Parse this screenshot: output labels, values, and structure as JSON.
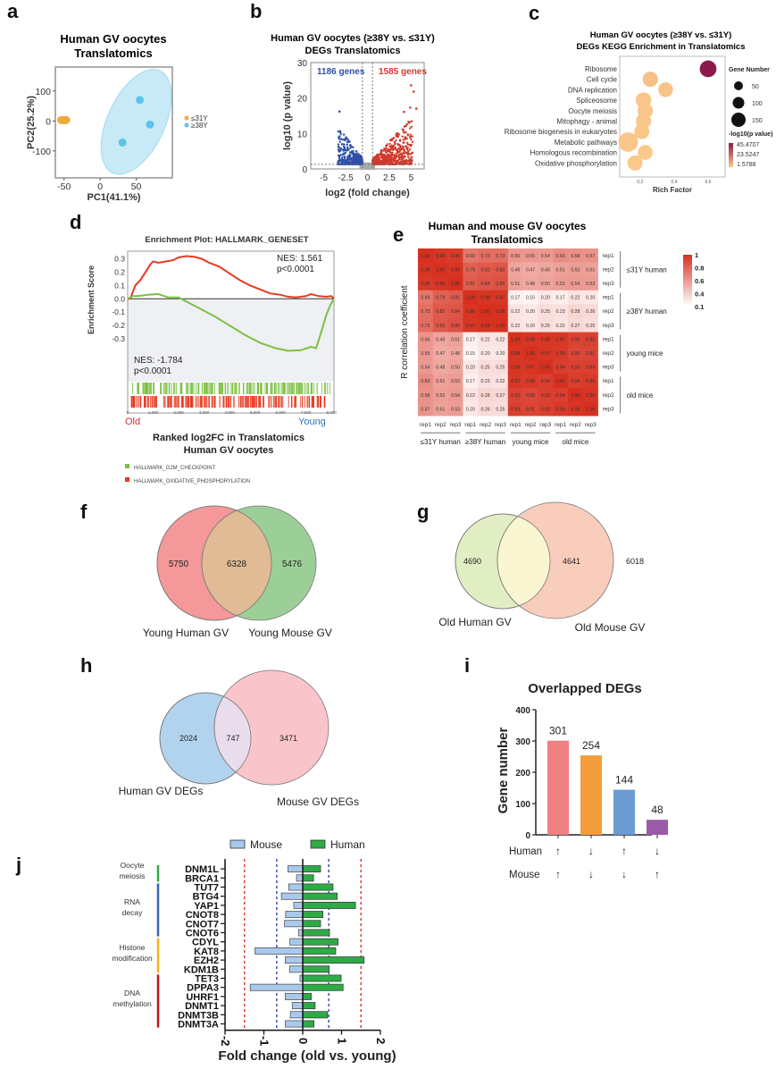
{
  "panel_labels": {
    "a": "a",
    "b": "b",
    "c": "c",
    "d": "d",
    "e": "e",
    "f": "f",
    "g": "g",
    "h": "h",
    "i": "i",
    "j": "j"
  },
  "chart_data": [
    {
      "id": "a",
      "type": "scatter",
      "title": "Human GV oocytes\nTranslatomics",
      "title_lines": [
        "Human GV oocytes",
        "Translatomics"
      ],
      "xlabel": "PC1(41.1%)",
      "ylabel": "PC2(25.2%)",
      "xlim": [
        -62,
        100
      ],
      "ylim": [
        -190,
        180
      ],
      "xticks": [
        -50,
        0,
        50
      ],
      "yticks": [
        -100,
        0,
        100
      ],
      "series": [
        {
          "name": "≤31Y",
          "color": "#f2a93b",
          "points": [
            [
              -54,
              3
            ],
            [
              -52,
              3
            ],
            [
              -50,
              3
            ],
            [
              -48,
              3
            ],
            [
              -47,
              3
            ]
          ]
        },
        {
          "name": "≥38Y",
          "color": "#5bc4ea",
          "points": [
            [
              55,
              70
            ],
            [
              69,
              -12
            ],
            [
              31,
              -72
            ]
          ]
        }
      ],
      "ellipse": {
        "series": "≥38Y",
        "color": "#bfe6f5"
      },
      "legend": [
        "≤31Y",
        "≥38Y"
      ],
      "legend_position": "right"
    },
    {
      "id": "b",
      "type": "scatter",
      "title_lines": [
        "Human GV oocytes (≥38Y vs. ≤31Y)",
        "DEGs Translatomics"
      ],
      "xlabel": "log2 (fold change)",
      "ylabel": "log10 (p value)",
      "xlim": [
        -6.5,
        6.5
      ],
      "ylim": [
        0,
        30
      ],
      "xticks": [
        -5,
        -2.5,
        0,
        2.5,
        5
      ],
      "yticks": [
        0,
        10,
        20,
        30
      ],
      "annotations": [
        {
          "text": "1186 genes",
          "color": "#2f4fa8",
          "position": "top-left"
        },
        {
          "text": "1585 genes",
          "color": "#d03a2c",
          "position": "top-right"
        }
      ],
      "down_count": 1186,
      "up_count": 1585,
      "fc_threshold": 0.58,
      "p_threshold": 1.3,
      "colors": {
        "down": "#2f4fa8",
        "up": "#d03a2c",
        "ns": "#aaaaaa"
      },
      "notable_points": [
        [
          -3.2,
          16.2
        ],
        [
          5.0,
          23.6
        ],
        [
          5.3,
          21.8
        ],
        [
          5.6,
          17.0
        ],
        [
          4.9,
          17.3
        ],
        [
          4.2,
          16.1
        ]
      ]
    },
    {
      "id": "c",
      "type": "scatter",
      "subtype": "bubble",
      "title_lines": [
        "Human GV oocytes (≥38Y vs. ≤31Y)",
        "DEGs KEGG Enrichment in Translatomics"
      ],
      "xlabel": "Rich Factor",
      "xticks": [
        0.2,
        0.4,
        0.6
      ],
      "xlim": [
        0.08,
        0.7
      ],
      "categories": [
        "Ribosome",
        "Cell cycle",
        "DNA replication",
        "Spliceosome",
        "Oocyte meiosis",
        "Mitophagy - animal",
        "Ribosome biogenesis in eukaryotes",
        "Metabolic pathways",
        "Homologous recombination",
        "Oxidative phosphorylation"
      ],
      "rich_factor": [
        0.6,
        0.26,
        0.35,
        0.22,
        0.23,
        0.22,
        0.21,
        0.13,
        0.23,
        0.17
      ],
      "gene_number": [
        95,
        70,
        60,
        75,
        70,
        68,
        65,
        160,
        62,
        65
      ],
      "neg_log10_p": [
        45.47,
        3.5,
        3.2,
        2.5,
        2.4,
        2.2,
        2.2,
        2.1,
        1.9,
        1.6
      ],
      "size_legend_title": "Gene Number",
      "size_legend": [
        50,
        100,
        150
      ],
      "color_legend_title": "-log10(p value)",
      "color_legend": [
        "45.4707",
        "23.5247",
        "1.5788"
      ],
      "colors": {
        "high": "#8b1a4a",
        "low": "#fbc98a"
      }
    },
    {
      "id": "d",
      "type": "line",
      "title": "Enrichment Plot: HALLMARK_GENESET",
      "ylabel": "Enrichment Score",
      "xlabel_lines": [
        "Ranked log2FC in Translatomics",
        "Human GV oocytes"
      ],
      "xlim": [
        0,
        8100
      ],
      "ylim": [
        -0.42,
        0.33
      ],
      "yticks": [
        "0.3",
        "0.2",
        "0.1",
        "0.0",
        "-0.1",
        "-0.2",
        "-0.3"
      ],
      "ytick_values": [
        0.3,
        0.2,
        0.1,
        0.0,
        -0.1,
        -0.2,
        -0.3
      ],
      "xticks": [
        "0",
        "1,000",
        "2,000",
        "3,000",
        "4,000",
        "5,000",
        "6,000",
        "7,000",
        "8,000"
      ],
      "xtick_values": [
        0,
        1000,
        2000,
        3000,
        4000,
        5000,
        6000,
        7000,
        8000
      ],
      "left_label": "Old",
      "right_label": "Young",
      "left_color": "#d62f2f",
      "right_color": "#2d74c2",
      "series": [
        {
          "name": "HALLMARK_OXIDATIVE_PHOSPHORYLATION",
          "color": "#e8391f",
          "nes_text": "NES: 1.561",
          "p_text": "p<0.0001",
          "x": [
            0,
            100,
            200,
            300,
            500,
            700,
            900,
            1000,
            1200,
            1500,
            1800,
            2000,
            2300,
            2600,
            2900,
            3200,
            3600,
            4000,
            4400,
            4800,
            5200,
            5600,
            6000,
            6300,
            6600,
            7000,
            7200,
            7500,
            7800,
            8000,
            8100
          ],
          "y": [
            0.0,
            0.0,
            0.05,
            0.1,
            0.14,
            0.2,
            0.26,
            0.28,
            0.27,
            0.28,
            0.29,
            0.31,
            0.32,
            0.315,
            0.3,
            0.27,
            0.24,
            0.19,
            0.14,
            0.1,
            0.07,
            0.04,
            0.03,
            0.015,
            0.01,
            0.02,
            0.035,
            0.02,
            0.015,
            0.02,
            0.0
          ]
        },
        {
          "name": "HALLMARK_G2M_CHECKPOINT",
          "color": "#7bc043",
          "nes_text": "NES: -1.784",
          "p_text": "p<0.0001",
          "x": [
            0,
            200,
            400,
            800,
            1200,
            1600,
            2000,
            2300,
            2800,
            3400,
            4000,
            4600,
            5200,
            5800,
            6300,
            6800,
            7200,
            7400,
            7600,
            7800,
            7950,
            8100
          ],
          "y": [
            0.0,
            0.02,
            0.02,
            0.03,
            0.035,
            0.01,
            0.01,
            -0.02,
            -0.07,
            -0.13,
            -0.2,
            -0.27,
            -0.33,
            -0.37,
            -0.39,
            -0.385,
            -0.36,
            -0.37,
            -0.25,
            -0.12,
            -0.05,
            0.0
          ]
        }
      ],
      "legend": [
        {
          "label": "HALLMARK_G2M_CHECKPOINT",
          "color": "#7bc043"
        },
        {
          "label": "HALLMARK_OXIDATIVE_PHOSPHORYLATION",
          "color": "#e8391f"
        }
      ]
    },
    {
      "id": "e",
      "type": "heatmap",
      "title_lines": [
        "Human and mouse GV oocytes",
        "Translatomics"
      ],
      "ylabel": "R correlation coefficient",
      "groups": [
        "≤31Y human",
        "≥38Y human",
        "young mice",
        "old mice"
      ],
      "reps": [
        "rep1",
        "rep2",
        "rep3"
      ],
      "matrix": [
        [
          1.0,
          0.98,
          0.96,
          0.69,
          0.73,
          0.73,
          0.56,
          0.55,
          0.54,
          0.6,
          0.58,
          0.57
        ],
        [
          0.98,
          1.0,
          0.98,
          0.79,
          0.82,
          0.83,
          0.49,
          0.47,
          0.48,
          0.51,
          0.52,
          0.51
        ],
        [
          0.96,
          0.98,
          1.0,
          0.81,
          0.84,
          0.86,
          0.51,
          0.48,
          0.5,
          0.53,
          0.54,
          0.53
        ],
        [
          0.69,
          0.79,
          0.81,
          1.0,
          0.98,
          0.97,
          0.17,
          0.15,
          0.2,
          0.17,
          0.22,
          0.2
        ],
        [
          0.73,
          0.82,
          0.84,
          0.98,
          1.0,
          0.99,
          0.22,
          0.2,
          0.25,
          0.23,
          0.28,
          0.26
        ],
        [
          0.73,
          0.83,
          0.86,
          0.97,
          0.99,
          1.0,
          0.22,
          0.2,
          0.25,
          0.22,
          0.27,
          0.25
        ],
        [
          0.56,
          0.49,
          0.51,
          0.17,
          0.22,
          0.22,
          1.0,
          0.98,
          0.98,
          0.97,
          0.92,
          0.93
        ],
        [
          0.55,
          0.47,
          0.48,
          0.15,
          0.2,
          0.2,
          0.98,
          1.0,
          0.97,
          0.96,
          0.9,
          0.91
        ],
        [
          0.54,
          0.48,
          0.5,
          0.2,
          0.25,
          0.25,
          0.98,
          0.97,
          1.0,
          0.94,
          0.93,
          0.93
        ],
        [
          0.6,
          0.51,
          0.53,
          0.17,
          0.23,
          0.22,
          0.97,
          0.96,
          0.94,
          1.0,
          0.94,
          0.96
        ],
        [
          0.58,
          0.52,
          0.54,
          0.22,
          0.28,
          0.27,
          0.92,
          0.9,
          0.93,
          0.94,
          1.0,
          0.98
        ],
        [
          0.57,
          0.51,
          0.53,
          0.2,
          0.26,
          0.25,
          0.93,
          0.91,
          0.93,
          0.96,
          0.98,
          1.0
        ]
      ],
      "colorbar_ticks": [
        "1",
        "0.8",
        "0.6",
        "0.4",
        "0.1"
      ],
      "color_range": [
        0.1,
        1
      ],
      "colors": {
        "high": "#d7301f",
        "low": "#ffffff"
      }
    },
    {
      "id": "f",
      "type": "venn",
      "sets": [
        {
          "label": "Young Human GV",
          "only": 5750,
          "color": "#f4989a"
        },
        {
          "label": "Young Mouse GV",
          "only": 5476,
          "color": "#9ccf98"
        }
      ],
      "overlap": 6328,
      "overlap_color": "#e0bb96"
    },
    {
      "id": "g",
      "type": "venn",
      "sets": [
        {
          "label": "Old Human GV",
          "only": 4690,
          "color": "#e1edc2"
        },
        {
          "label": "Old Mouse GV",
          "only": 6018,
          "color": "#f9cdbb"
        }
      ],
      "overlap": 4641,
      "overlap_color": "#faf6d2"
    },
    {
      "id": "h",
      "type": "venn",
      "sets": [
        {
          "label": "Human GV DEGs",
          "only": 2024,
          "color": "#b2d3ee"
        },
        {
          "label": "Mouse GV DEGs",
          "only": 3471,
          "color": "#f9c5ca"
        }
      ],
      "overlap": 747,
      "overlap_color": "#e9dcec"
    },
    {
      "id": "i",
      "type": "bar",
      "title": "Overlapped DEGs",
      "ylabel": "Gene number",
      "ylim": [
        0,
        400
      ],
      "yticks": [
        0,
        100,
        200,
        300,
        400
      ],
      "values": [
        301,
        254,
        144,
        48
      ],
      "colors": [
        "#f07f82",
        "#f49d3c",
        "#6a9bd3",
        "#9b5aa8"
      ],
      "row_labels": [
        "Human",
        "Mouse"
      ],
      "human": [
        "↑",
        "↓",
        "↑",
        "↓"
      ],
      "mouse": [
        "↑",
        "↓",
        "↓",
        "↑"
      ]
    },
    {
      "id": "j",
      "type": "bar",
      "orientation": "horizontal",
      "xlabel": "Fold change (old vs. young)",
      "xlim": [
        -2,
        2
      ],
      "xticks": [
        -2,
        -1,
        0,
        1,
        2
      ],
      "reference_lines": {
        "red": [
          -1.5,
          1.5
        ],
        "blue": [
          -0.67,
          0.67
        ]
      },
      "categories": [
        "DNM1L",
        "BRCA1",
        "TUT7",
        "BTG4",
        "YAP1",
        "CNOT8",
        "CNOT7",
        "CNOT6",
        "CDYL",
        "KAT8",
        "EZH2",
        "KDM1B",
        "TET3",
        "DPPA3",
        "UHRF1",
        "DNMT1",
        "DNMT3B",
        "DNMT3A"
      ],
      "series": [
        {
          "name": "Mouse",
          "color": "#a8c9ec",
          "values": [
            -0.38,
            -0.16,
            -0.36,
            -0.55,
            -0.23,
            -0.44,
            -0.47,
            -0.11,
            -0.33,
            -1.23,
            -0.45,
            -0.34,
            -0.07,
            -1.35,
            -0.45,
            -0.27,
            -0.32,
            -0.45
          ]
        },
        {
          "name": "Human",
          "color": "#2eaa46",
          "values": [
            0.46,
            0.28,
            0.78,
            0.89,
            1.36,
            0.52,
            0.46,
            0.69,
            0.91,
            0.85,
            1.58,
            0.68,
            0.99,
            1.04,
            0.22,
            0.32,
            0.64,
            0.29
          ]
        }
      ],
      "groups": [
        {
          "label_lines": [
            "Oocyte",
            "meiosis"
          ],
          "color": "#2eaa46",
          "start": 0,
          "end": 1
        },
        {
          "label_lines": [
            "RNA",
            "decay"
          ],
          "color": "#3b63b5",
          "start": 2,
          "end": 7
        },
        {
          "label_lines": [
            "Histone",
            "modification"
          ],
          "color": "#f5b31c",
          "start": 8,
          "end": 11
        },
        {
          "label_lines": [
            "DNA",
            "methylation"
          ],
          "color": "#c0161e",
          "start": 12,
          "end": 17
        }
      ]
    }
  ]
}
